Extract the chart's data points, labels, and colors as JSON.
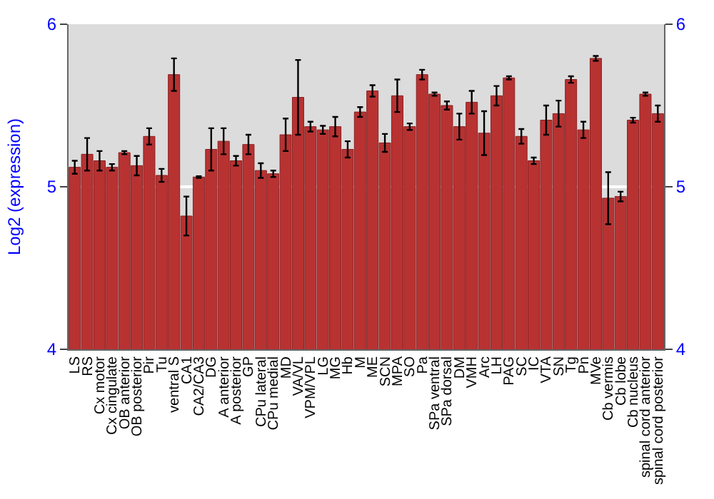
{
  "chart_data": {
    "type": "bar",
    "ylabel": "Log2 (expression)",
    "categories": [
      "LS",
      "RS",
      "Cx motor",
      "Cx cingulate",
      "OB anterior",
      "OB posterior",
      "Pir",
      "Tu",
      "ventral S",
      "CA1",
      "CA2/CA3",
      "DG",
      "A anterior",
      "A posterior",
      "GP",
      "CPu lateral",
      "CPu medial",
      "MD",
      "VA/VL",
      "VPM/VPL",
      "LG",
      "MG",
      "Hb",
      "M",
      "ME",
      "SCN",
      "MPA",
      "SO",
      "Pa",
      "SPa ventral",
      "SPa dorsal",
      "DM",
      "VMH",
      "Arc",
      "LH",
      "PAG",
      "SC",
      "IC",
      "VTA",
      "SN",
      "Tg",
      "Pn",
      "MVe",
      "Cb vermis",
      "Cb lobe",
      "Cb nucleus",
      "spinal cord anterior",
      "spinal cord posterior"
    ],
    "values": [
      5.12,
      5.2,
      5.16,
      5.12,
      5.21,
      5.13,
      5.31,
      5.07,
      5.69,
      4.82,
      5.06,
      5.23,
      5.28,
      5.16,
      5.26,
      5.1,
      5.08,
      5.32,
      5.55,
      5.37,
      5.35,
      5.37,
      5.23,
      5.46,
      5.59,
      5.27,
      5.56,
      5.37,
      5.69,
      5.57,
      5.5,
      5.37,
      5.52,
      5.33,
      5.56,
      5.67,
      5.31,
      5.16,
      5.41,
      5.45,
      5.66,
      5.35,
      5.79,
      4.93,
      4.94,
      5.41,
      5.57,
      5.45
    ],
    "errors": [
      0.04,
      0.1,
      0.06,
      0.02,
      0.01,
      0.06,
      0.05,
      0.04,
      0.1,
      0.12,
      0.005,
      0.13,
      0.08,
      0.03,
      0.06,
      0.045,
      0.02,
      0.1,
      0.23,
      0.03,
      0.025,
      0.06,
      0.05,
      0.03,
      0.035,
      0.055,
      0.1,
      0.02,
      0.03,
      0.01,
      0.025,
      0.08,
      0.07,
      0.135,
      0.06,
      0.01,
      0.045,
      0.02,
      0.09,
      0.08,
      0.02,
      0.05,
      0.015,
      0.16,
      0.03,
      0.015,
      0.01,
      0.05
    ],
    "color": "#b83232",
    "ylim": [
      4,
      6
    ],
    "yticks": [
      4,
      5,
      6
    ],
    "y2lim": [
      4,
      6
    ],
    "y2ticks": [
      4,
      5,
      6
    ],
    "grid": "y"
  }
}
